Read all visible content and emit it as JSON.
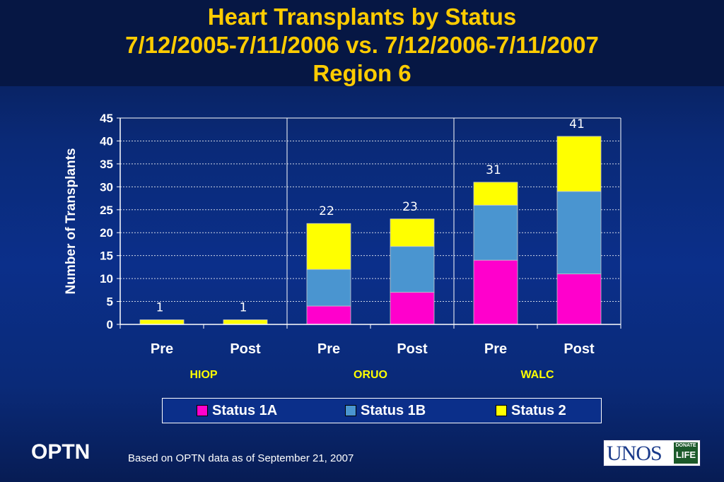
{
  "title": {
    "line1": "Heart Transplants by Status",
    "line2": "7/12/2005-7/11/2006 vs. 7/12/2006-7/11/2007",
    "line3": "Region 6"
  },
  "colors": {
    "status_1a": "#ff00cc",
    "status_1b": "#4a95d0",
    "status_2": "#ffff00",
    "title": "#ffcc00",
    "group_label": "#ffff00"
  },
  "chart_data": {
    "type": "bar",
    "stacked": true,
    "ylabel": "Number of Transplants",
    "ylim": [
      0,
      45
    ],
    "yticks": [
      0,
      5,
      10,
      15,
      20,
      25,
      30,
      35,
      40,
      45
    ],
    "grid": true,
    "legend_position": "bottom",
    "categories": [
      "Pre",
      "Post",
      "Pre",
      "Post",
      "Pre",
      "Post"
    ],
    "groups": [
      {
        "label": "HIOP",
        "categories": [
          0,
          1
        ]
      },
      {
        "label": "ORUO",
        "categories": [
          2,
          3
        ]
      },
      {
        "label": "WALC",
        "categories": [
          4,
          5
        ]
      }
    ],
    "series": [
      {
        "name": "Status 1A",
        "values": [
          0,
          0,
          4,
          7,
          14,
          11
        ]
      },
      {
        "name": "Status 1B",
        "values": [
          0,
          0,
          8,
          10,
          12,
          18
        ]
      },
      {
        "name": "Status 2",
        "values": [
          1,
          1,
          10,
          6,
          5,
          12
        ]
      }
    ],
    "totals": [
      "1",
      "1",
      "22",
      "23",
      "31",
      "41"
    ]
  },
  "footer": {
    "brand": "OPTN",
    "note": "Based on OPTN data as of  September 21, 2007",
    "logo_text": "UNOS",
    "logo_badge_top": "DONATE",
    "logo_badge_bottom": "LIFE"
  }
}
